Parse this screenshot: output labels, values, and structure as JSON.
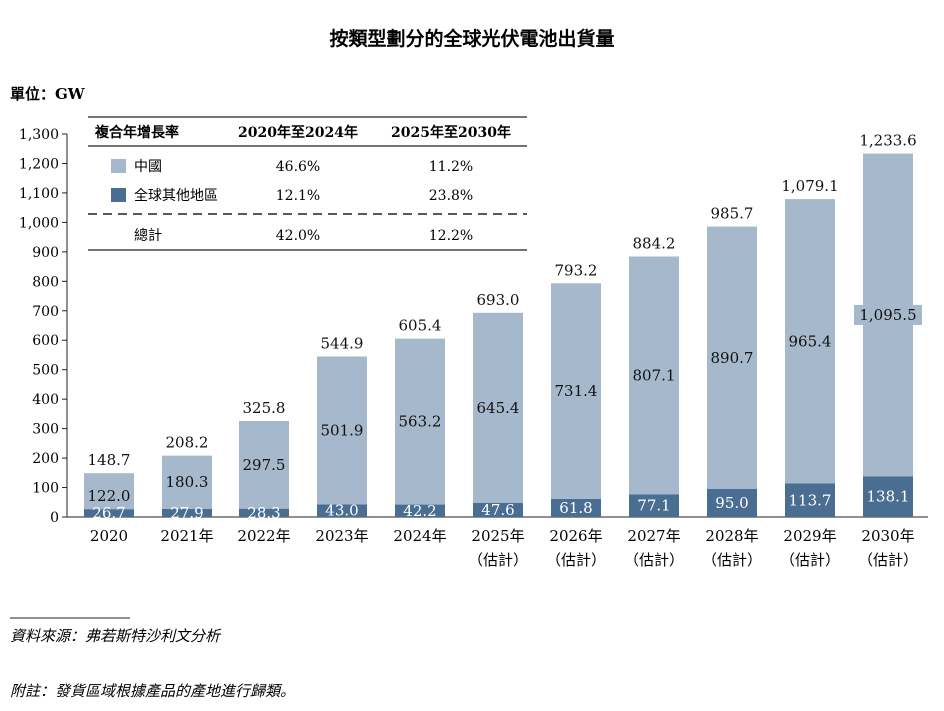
{
  "chart_data": {
    "type": "bar",
    "stacked": true,
    "title": "按類型劃分的全球光伏電池出貨量",
    "unit_label": "單位：GW",
    "ylim": [
      0,
      1300
    ],
    "y_ticks": [
      "0",
      "100",
      "200",
      "300",
      "400",
      "500",
      "600",
      "700",
      "800",
      "900",
      "1,000",
      "1,100",
      "1,200",
      "1,300"
    ],
    "categories": [
      [
        "2020"
      ],
      [
        "2021年"
      ],
      [
        "2022年"
      ],
      [
        "2023年"
      ],
      [
        "2024年"
      ],
      [
        "2025年",
        "（估計）"
      ],
      [
        "2026年",
        "（估計）"
      ],
      [
        "2027年",
        "（估計）"
      ],
      [
        "2028年",
        "（估計）"
      ],
      [
        "2029年",
        "（估計）"
      ],
      [
        "2030年",
        "（估計）"
      ]
    ],
    "series": [
      {
        "name": "全球其他地區",
        "color": "#4a6d92",
        "values": [
          26.7,
          27.9,
          28.3,
          43.0,
          42.2,
          47.6,
          61.8,
          77.1,
          95.0,
          113.7,
          138.1
        ],
        "labels": [
          "26.7",
          "27.9",
          "28.3",
          "43.0",
          "42.2",
          "47.6",
          "61.8",
          "77.1",
          "95.0",
          "113.7",
          "138.1"
        ]
      },
      {
        "name": "中國",
        "color": "#a5b8cc",
        "values": [
          122.0,
          180.3,
          297.5,
          501.9,
          563.2,
          645.4,
          731.4,
          807.1,
          890.7,
          965.4,
          1095.5
        ],
        "labels": [
          "122.0",
          "180.3",
          "297.5",
          "501.9",
          "563.2",
          "645.4",
          "731.4",
          "807.1",
          "890.7",
          "965.4",
          "1,095.5"
        ]
      }
    ],
    "totals": [
      148.7,
      208.2,
      325.8,
      544.9,
      605.4,
      693.0,
      793.2,
      884.2,
      985.7,
      1079.1,
      1233.6
    ],
    "total_labels": [
      "148.7",
      "208.2",
      "325.8",
      "544.9",
      "605.4",
      "693.0",
      "793.2",
      "884.2",
      "985.7",
      "1,079.1",
      "1,233.6"
    ],
    "cagr_table": {
      "headers": [
        "複合年增長率",
        "2020年至2024年",
        "2025年至2030年"
      ],
      "rows": [
        {
          "label": "中國",
          "swatch": "#a5b8cc",
          "values": [
            "46.6%",
            "11.2%"
          ]
        },
        {
          "label": "全球其他地區",
          "swatch": "#4a6d92",
          "values": [
            "12.1%",
            "23.8%"
          ]
        },
        {
          "label": "總計",
          "swatch": null,
          "values": [
            "42.0%",
            "12.2%"
          ]
        }
      ]
    }
  },
  "footnotes": {
    "source": "資料來源：弗若斯特沙利文分析",
    "note": "附註：發貨區域根據產品的產地進行歸類。"
  }
}
